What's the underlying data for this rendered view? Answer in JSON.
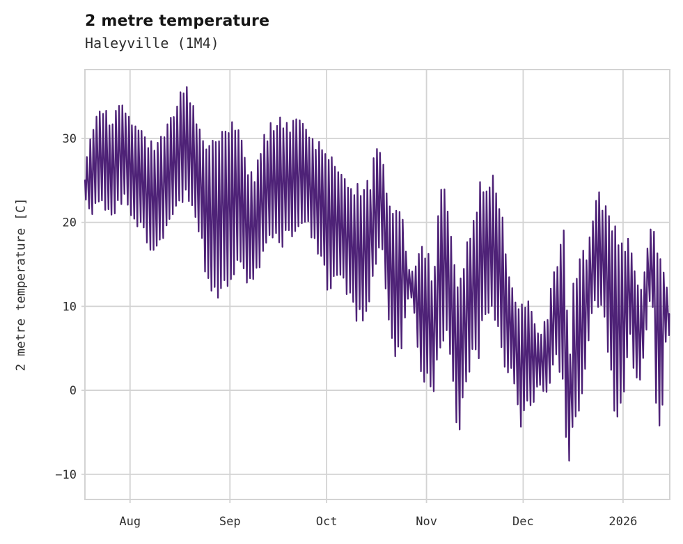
{
  "header": {
    "title": "2 metre temperature",
    "subtitle": "Haleyville (1M4)"
  },
  "chart_data": {
    "type": "line",
    "title": "2 metre temperature",
    "subtitle": "Haleyville (1M4)",
    "ylabel": "2 metre temperature [C]",
    "xlabel": "",
    "legend_position": "none",
    "grid": true,
    "line_color": "#4e2277",
    "grid_color": "#d3d3d3",
    "background_color": "#ffffff",
    "x_unit": "days since first sample (mid-July 2025, axis labelled by month start)",
    "x_domain": [
      0,
      181.5
    ],
    "y_domain": [
      -13.0,
      38.2
    ],
    "x_ticks": [
      {
        "label": "Aug",
        "day": 14
      },
      {
        "label": "Sep",
        "day": 45
      },
      {
        "label": "Oct",
        "day": 75
      },
      {
        "label": "Nov",
        "day": 106
      },
      {
        "label": "Dec",
        "day": 136
      },
      {
        "label": "2026",
        "day": 167
      }
    ],
    "y_ticks": [
      {
        "label": "30",
        "value": 30
      },
      {
        "label": "20",
        "value": 20
      },
      {
        "label": "10",
        "value": 10
      },
      {
        "label": "0",
        "value": 0
      },
      {
        "label": "−10",
        "value": -10
      }
    ],
    "envelope_daily_min_max": [
      [
        0,
        22.5,
        27.5
      ],
      [
        2,
        21.5,
        31.0
      ],
      [
        4,
        21.5,
        32.5
      ],
      [
        6,
        22.0,
        33.3
      ],
      [
        8,
        21.0,
        31.0
      ],
      [
        10,
        22.0,
        34.5
      ],
      [
        12,
        23.0,
        33.5
      ],
      [
        14,
        21.5,
        31.2
      ],
      [
        16,
        20.5,
        31.5
      ],
      [
        18,
        19.0,
        30.5
      ],
      [
        20,
        17.5,
        29.0
      ],
      [
        22,
        17.5,
        29.5
      ],
      [
        24,
        18.5,
        30.5
      ],
      [
        26,
        21.0,
        31.7
      ],
      [
        28,
        22.0,
        33.5
      ],
      [
        30,
        23.0,
        35.2
      ],
      [
        32,
        23.5,
        35.8
      ],
      [
        34,
        22.0,
        32.0
      ],
      [
        36,
        18.0,
        30.5
      ],
      [
        38,
        14.0,
        29.5
      ],
      [
        40,
        11.3,
        28.0
      ],
      [
        42,
        12.8,
        29.5
      ],
      [
        44,
        13.5,
        30.2
      ],
      [
        46,
        14.5,
        31.5
      ],
      [
        48,
        15.0,
        29.5
      ],
      [
        50,
        14.0,
        27.0
      ],
      [
        52,
        13.0,
        24.5
      ],
      [
        54,
        14.0,
        28.5
      ],
      [
        56,
        17.0,
        30.5
      ],
      [
        58,
        18.0,
        31.5
      ],
      [
        60,
        17.5,
        32.0
      ],
      [
        62,
        18.5,
        32.2
      ],
      [
        64,
        19.0,
        31.0
      ],
      [
        66,
        19.5,
        32.0
      ],
      [
        68,
        20.0,
        32.0
      ],
      [
        70,
        19.0,
        29.5
      ],
      [
        72,
        17.5,
        29.0
      ],
      [
        74,
        15.0,
        28.5
      ],
      [
        76,
        12.1,
        27.0
      ],
      [
        78,
        13.5,
        26.8
      ],
      [
        80,
        13.5,
        25.5
      ],
      [
        82,
        11.0,
        24.0
      ],
      [
        84,
        9.5,
        23.5
      ],
      [
        86,
        8.5,
        23.5
      ],
      [
        88,
        9.5,
        24.0
      ],
      [
        90,
        15.0,
        28.8
      ],
      [
        92,
        17.8,
        28.1
      ],
      [
        94,
        10.0,
        22.5
      ],
      [
        96,
        4.5,
        21.0
      ],
      [
        98,
        4.0,
        20.5
      ],
      [
        100,
        11.0,
        14.2
      ],
      [
        102,
        11.0,
        14.0
      ],
      [
        104,
        2.8,
        16.9
      ],
      [
        106,
        1.6,
        16.4
      ],
      [
        108,
        -0.9,
        12.0
      ],
      [
        110,
        5.0,
        23.3
      ],
      [
        112,
        7.0,
        22.5
      ],
      [
        114,
        2.0,
        15.8
      ],
      [
        116,
        -6.5,
        12.0
      ],
      [
        118,
        0.5,
        16.0
      ],
      [
        120,
        4.0,
        19.4
      ],
      [
        122,
        4.0,
        23.5
      ],
      [
        124,
        8.5,
        24.1
      ],
      [
        127,
        10.5,
        24.7
      ],
      [
        129,
        5.3,
        21.0
      ],
      [
        131,
        2.6,
        15.0
      ],
      [
        133,
        2.6,
        10.3
      ],
      [
        135,
        -3.8,
        9.5
      ],
      [
        137,
        -1.6,
        10.4
      ],
      [
        139,
        -2.2,
        8.0
      ],
      [
        141,
        1.7,
        6.5
      ],
      [
        143,
        -1.5,
        8.0
      ],
      [
        145,
        2.5,
        13.3
      ],
      [
        147,
        4.5,
        16.0
      ],
      [
        149,
        -2.0,
        19.0
      ],
      [
        150,
        -10.5,
        -2.0
      ],
      [
        151,
        -5.5,
        12.5
      ],
      [
        153,
        -2.4,
        14.0
      ],
      [
        155,
        0.0,
        16.2
      ],
      [
        157,
        8.0,
        18.5
      ],
      [
        159,
        10.8,
        24.1
      ],
      [
        161,
        9.0,
        21.6
      ],
      [
        163,
        3.4,
        20.5
      ],
      [
        165,
        -5.5,
        17.0
      ],
      [
        167,
        -2.0,
        17.2
      ],
      [
        169,
        7.3,
        17.5
      ],
      [
        171,
        0.3,
        12.8
      ],
      [
        173,
        2.6,
        12.3
      ],
      [
        175,
        9.2,
        18.3
      ],
      [
        176,
        13.0,
        19.8
      ],
      [
        178,
        -5.9,
        16.6
      ],
      [
        179,
        -5.9,
        15.2
      ],
      [
        180,
        5.6,
        15.2
      ],
      [
        181,
        6.5,
        9.0
      ]
    ]
  }
}
